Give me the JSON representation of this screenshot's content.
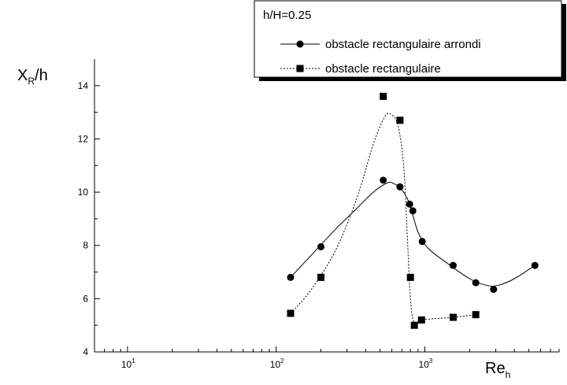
{
  "chart_data": {
    "type": "line",
    "title": "",
    "xlabel": {
      "main": "Re",
      "sub": "h"
    },
    "ylabel": {
      "main": "X",
      "sub": "R",
      "suffix": "/h"
    },
    "x_scale": "log",
    "xlim": [
      6,
      8000
    ],
    "ylim": [
      4,
      15
    ],
    "x_ticks": [
      {
        "value": 10,
        "base": "10",
        "exp": "1"
      },
      {
        "value": 100,
        "base": "10",
        "exp": "2"
      },
      {
        "value": 1000,
        "base": "10",
        "exp": "3"
      }
    ],
    "y_ticks": [
      4,
      6,
      8,
      10,
      12,
      14
    ],
    "grid": false,
    "legend": {
      "placement": "top-right",
      "title": "h/H=0.25"
    },
    "series": [
      {
        "name": "obstacle rectangulaire arrondi",
        "marker": "circle",
        "line_style": "solid",
        "color": "#000000",
        "points": [
          {
            "x": 125,
            "y": 6.8
          },
          {
            "x": 200,
            "y": 7.95
          },
          {
            "x": 525,
            "y": 10.45
          },
          {
            "x": 680,
            "y": 10.2
          },
          {
            "x": 790,
            "y": 9.55
          },
          {
            "x": 830,
            "y": 9.3
          },
          {
            "x": 960,
            "y": 8.15
          },
          {
            "x": 1550,
            "y": 7.25
          },
          {
            "x": 2200,
            "y": 6.6
          },
          {
            "x": 2900,
            "y": 6.35
          },
          {
            "x": 5500,
            "y": 7.25
          }
        ],
        "curve": [
          [
            125,
            6.8
          ],
          [
            170,
            7.6
          ],
          [
            250,
            8.6
          ],
          [
            350,
            9.4
          ],
          [
            450,
            10.0
          ],
          [
            560,
            10.35
          ],
          [
            620,
            10.32
          ],
          [
            700,
            10.1
          ],
          [
            790,
            9.55
          ],
          [
            900,
            8.5
          ],
          [
            1050,
            7.9
          ],
          [
            1400,
            7.35
          ],
          [
            2000,
            6.75
          ],
          [
            2600,
            6.5
          ],
          [
            3100,
            6.5
          ],
          [
            4000,
            6.75
          ],
          [
            5500,
            7.25
          ]
        ]
      },
      {
        "name": "obstacle rectangulaire",
        "marker": "square",
        "line_style": "dotted",
        "color": "#000000",
        "points": [
          {
            "x": 125,
            "y": 5.45
          },
          {
            "x": 200,
            "y": 6.8
          },
          {
            "x": 525,
            "y": 13.6
          },
          {
            "x": 680,
            "y": 12.7
          },
          {
            "x": 800,
            "y": 6.8
          },
          {
            "x": 850,
            "y": 5.0
          },
          {
            "x": 950,
            "y": 5.2
          },
          {
            "x": 1550,
            "y": 5.3
          },
          {
            "x": 2200,
            "y": 5.4
          }
        ],
        "curve": [
          [
            125,
            5.45
          ],
          [
            170,
            6.3
          ],
          [
            250,
            7.8
          ],
          [
            350,
            9.8
          ],
          [
            450,
            11.8
          ],
          [
            540,
            12.85
          ],
          [
            600,
            12.9
          ],
          [
            660,
            12.5
          ],
          [
            720,
            11.0
          ],
          [
            760,
            8.5
          ],
          [
            790,
            6.5
          ],
          [
            820,
            5.4
          ],
          [
            870,
            5.05
          ],
          [
            950,
            5.2
          ],
          [
            1550,
            5.3
          ],
          [
            2200,
            5.4
          ]
        ]
      }
    ]
  }
}
